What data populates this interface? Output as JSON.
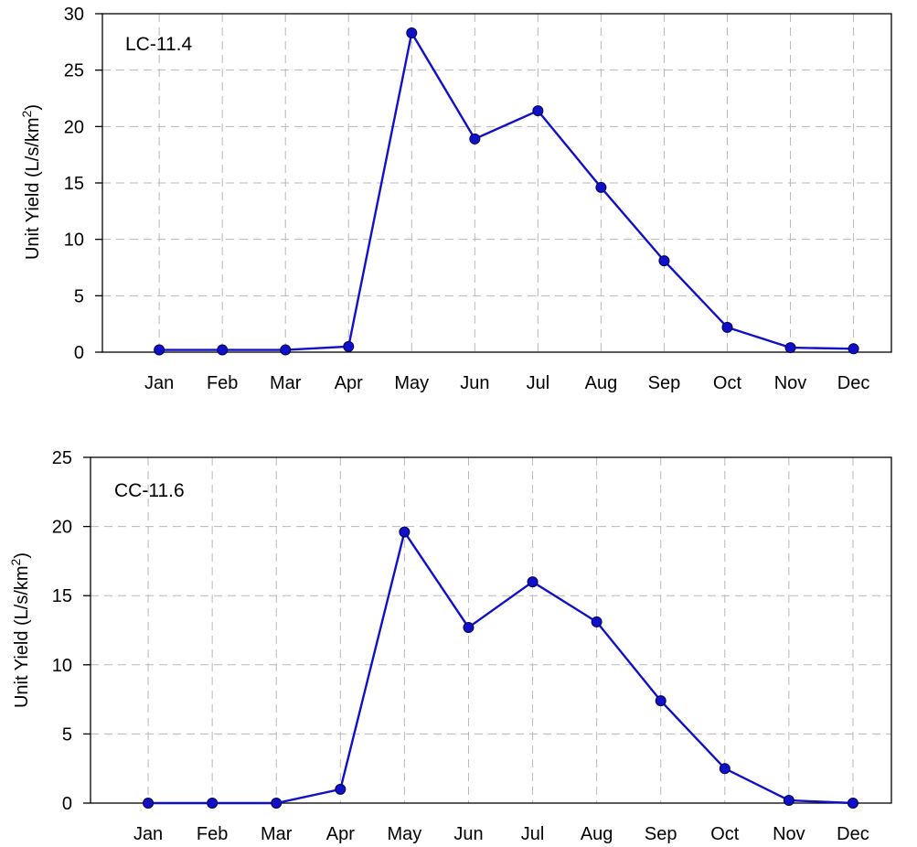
{
  "chart_data": [
    {
      "type": "line",
      "panel_label": "LC-11.4",
      "ylabel_main": "Unit Yield (L/s/km",
      "ylabel_sup": "2",
      "ylabel_end": ")",
      "categories": [
        "Jan",
        "Feb",
        "Mar",
        "Apr",
        "May",
        "Jun",
        "Jul",
        "Aug",
        "Sep",
        "Oct",
        "Nov",
        "Dec"
      ],
      "values": [
        0.2,
        0.2,
        0.2,
        0.5,
        28.3,
        18.9,
        21.4,
        14.6,
        8.1,
        2.2,
        0.4,
        0.3
      ],
      "ylim": [
        0,
        30
      ],
      "yticks": [
        0,
        5,
        10,
        15,
        20,
        25,
        30
      ],
      "grid": true,
      "color": "#1010c8"
    },
    {
      "type": "line",
      "panel_label": "CC-11.6",
      "ylabel_main": "Unit Yield (L/s/km",
      "ylabel_sup": "2",
      "ylabel_end": ")",
      "categories": [
        "Jan",
        "Feb",
        "Mar",
        "Apr",
        "May",
        "Jun",
        "Jul",
        "Aug",
        "Sep",
        "Oct",
        "Nov",
        "Dec"
      ],
      "values": [
        0.0,
        0.0,
        0.0,
        1.0,
        19.6,
        12.7,
        16.0,
        13.1,
        7.4,
        2.5,
        0.2,
        0.0
      ],
      "ylim": [
        0,
        25
      ],
      "yticks": [
        0,
        5,
        10,
        15,
        20,
        25
      ],
      "grid": true,
      "color": "#1010c8"
    }
  ]
}
